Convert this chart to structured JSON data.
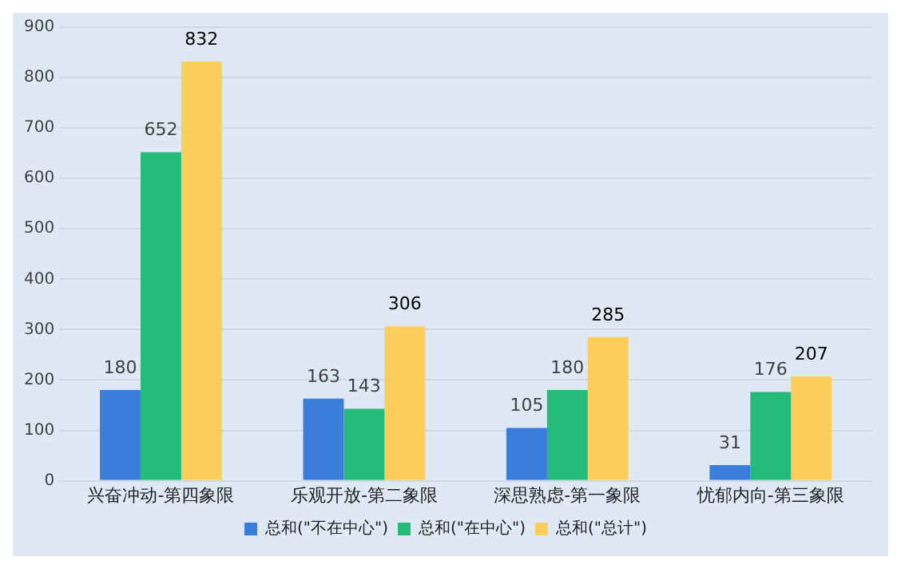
{
  "chart_data": {
    "type": "bar",
    "categories": [
      "兴奋冲动-第四象限",
      "乐观开放-第二象限",
      "深思熟虑-第一象限",
      "忧郁内向-第三象限"
    ],
    "series": [
      {
        "name": "总和(\"不在中心\")",
        "color": "#3a7ddb",
        "values": [
          180,
          163,
          105,
          31
        ]
      },
      {
        "name": "总和(\"在中心\")",
        "color": "#22bb7a",
        "values": [
          652,
          143,
          180,
          176
        ]
      },
      {
        "name": "总和(\"总计\")",
        "color": "#fbcd5b",
        "values": [
          832,
          306,
          285,
          207
        ]
      }
    ],
    "ylim": [
      0,
      900
    ],
    "yticks": [
      0,
      100,
      200,
      300,
      400,
      500,
      600,
      700,
      800,
      900
    ],
    "grid": "y",
    "legend": "bottom",
    "data_labels": true
  }
}
